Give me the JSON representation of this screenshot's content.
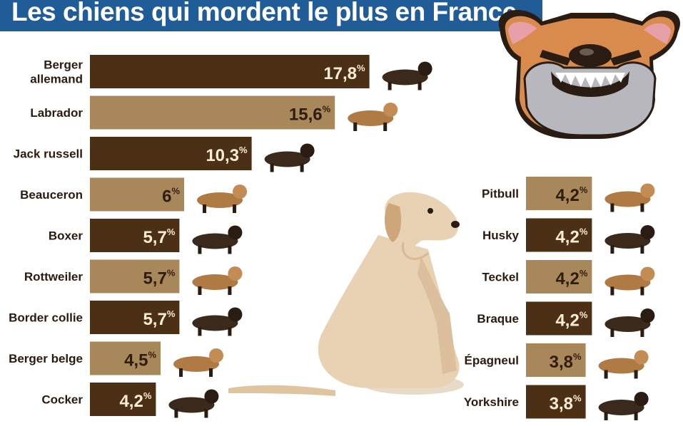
{
  "title": "Les chiens qui mordent le plus en France",
  "colors": {
    "dark": "#4b3016",
    "light": "#a8885a",
    "dark_text": "#fbecd4",
    "light_text": "#2f1d0c",
    "title_bar": "#1f5c98"
  },
  "chart_data": [
    {
      "type": "bar",
      "orientation": "horizontal",
      "unit": "%",
      "categories": [
        [
          "Berger",
          "allemand"
        ],
        [
          "Labrador"
        ],
        [
          "Jack russell"
        ],
        [
          "Beauceron"
        ],
        [
          "Boxer"
        ],
        [
          "Rottweiler"
        ],
        [
          "Border collie"
        ],
        [
          "Berger belge"
        ],
        [
          "Cocker"
        ]
      ],
      "values": [
        17.8,
        15.6,
        10.3,
        6,
        5.7,
        5.7,
        5.7,
        4.5,
        4.2
      ],
      "labels": [
        "17,8",
        "15,6",
        "10,3",
        "6",
        "5,7",
        "5,7",
        "5,7",
        "4,5",
        "4,2"
      ]
    },
    {
      "type": "bar",
      "orientation": "horizontal",
      "unit": "%",
      "categories": [
        [
          "Pitbull"
        ],
        [
          "Husky"
        ],
        [
          "Teckel"
        ],
        [
          "Braque"
        ],
        [
          "Épagneul"
        ],
        [
          "Yorkshire"
        ]
      ],
      "values": [
        4.2,
        4.2,
        4.2,
        4.2,
        3.8,
        3.8
      ],
      "labels": [
        "4,2",
        "4,2",
        "4,2",
        "4,2",
        "3,8",
        "3,8"
      ]
    }
  ]
}
